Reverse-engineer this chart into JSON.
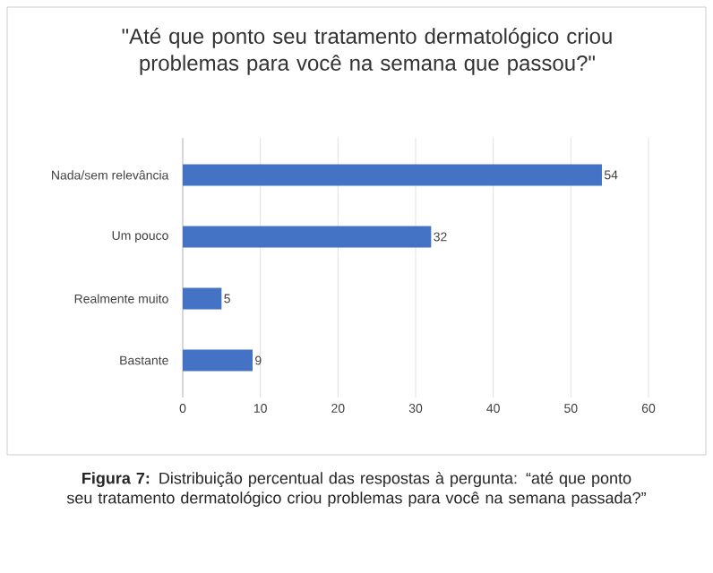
{
  "chart_data": {
    "type": "bar",
    "orientation": "horizontal",
    "title": "\"Até que ponto seu tratamento dermatológico criou problemas para você na semana que passou?\"",
    "categories": [
      "Nada/sem relevância",
      "Um pouco",
      "Realmente muito",
      "Bastante"
    ],
    "values": [
      54,
      32,
      5,
      9
    ],
    "color": "#4472c4",
    "xlim": [
      0,
      60
    ],
    "xticks": [
      0,
      10,
      20,
      30,
      40,
      50,
      60
    ],
    "grid": "x",
    "data_labels": true,
    "annotations": [
      "**Figura 7:** Distribuição percentual das respostas à pergunta: “até que ponto seu tratamento dermatológico criou problemas para você na semana passada?”"
    ]
  }
}
